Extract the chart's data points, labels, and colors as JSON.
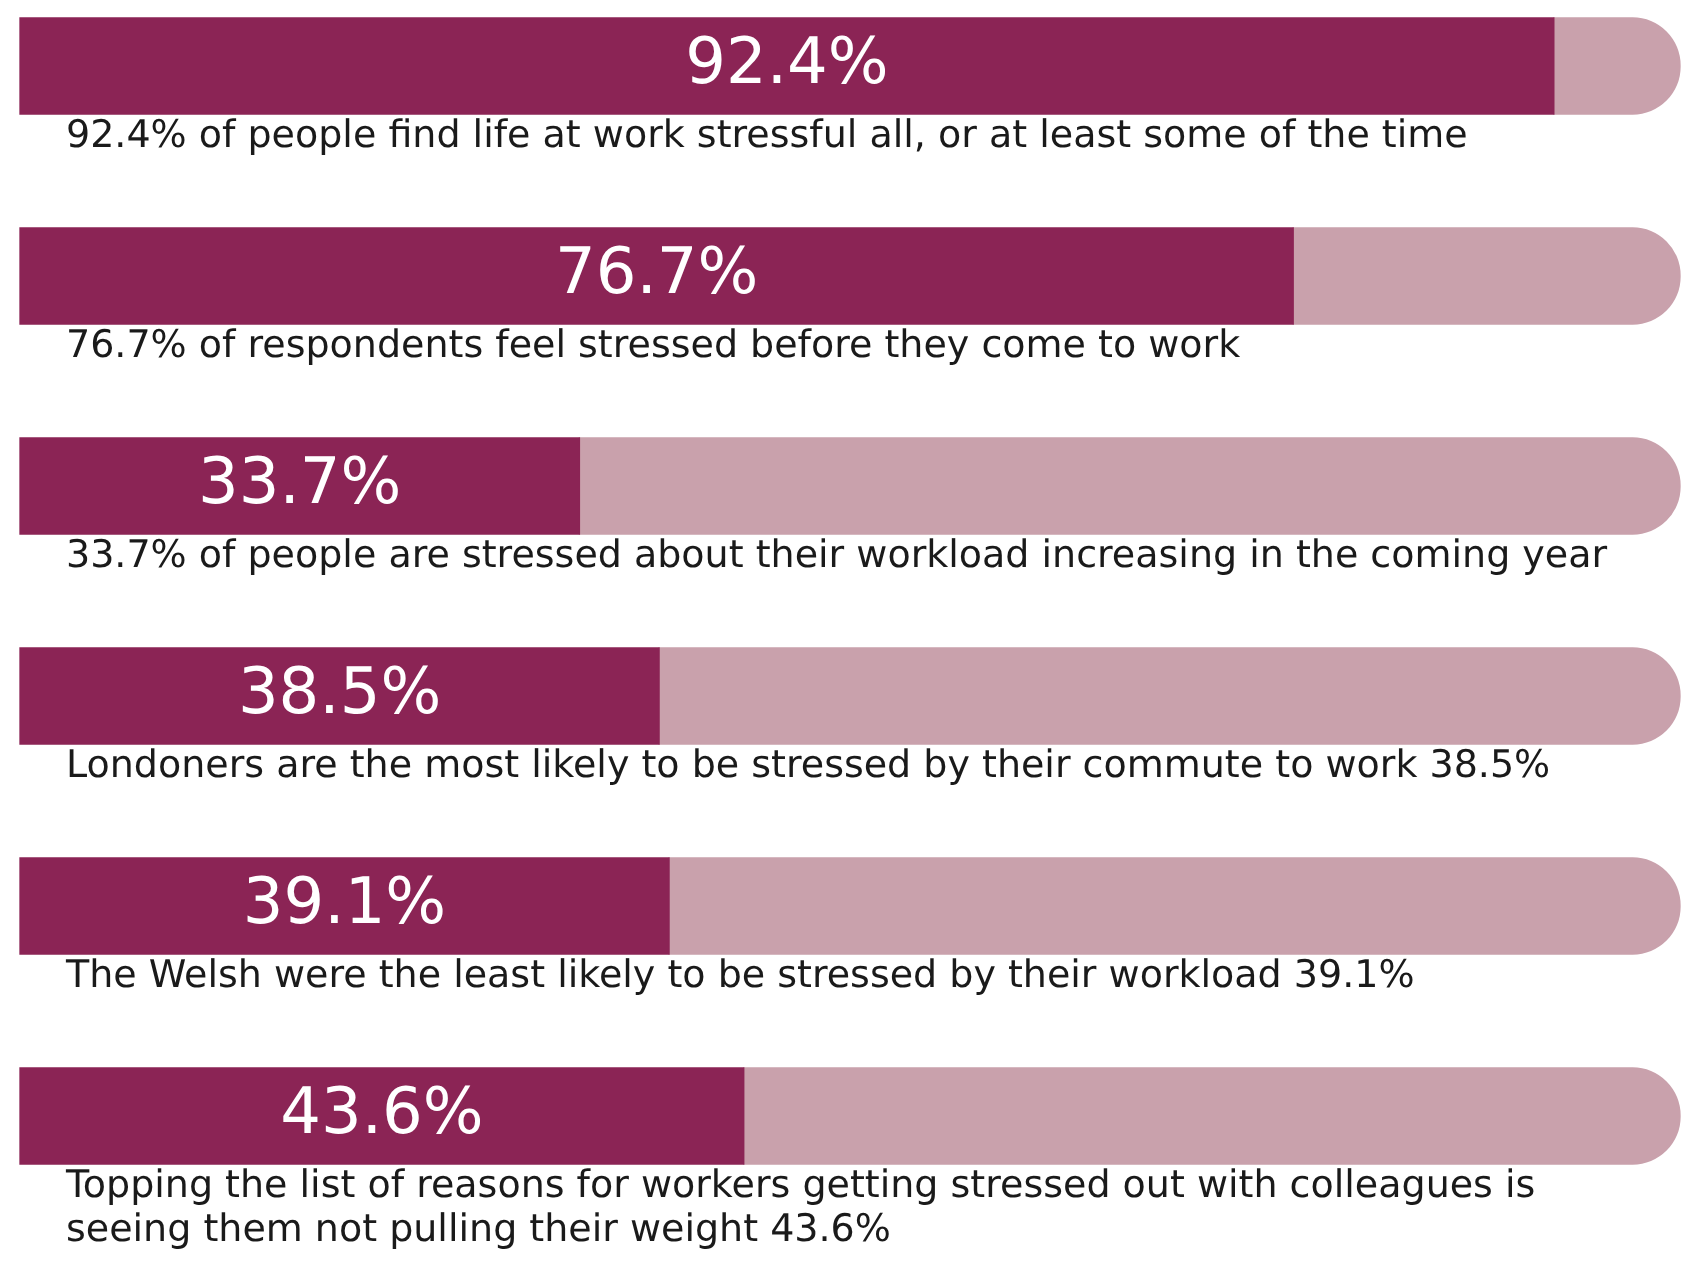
{
  "chart_data": {
    "type": "bar",
    "orientation": "horizontal",
    "stacked": true,
    "xlim": [
      0,
      100
    ],
    "tick_labels": false,
    "legend": false,
    "categories": [
      "92.4% of people find life at work stressful all, or at least some of the time",
      "76.7% of respondents feel stressed before they come to work",
      "33.7% of people are stressed about their workload increasing in the coming year",
      "Londoners are the most likely to be stressed by their commute to work 38.5%",
      "The Welsh were the least likely to be stressed by their workload 39.1%",
      "Topping the list of reasons for workers getting stressed out with colleagues is seeing them not pulling their weight 43.6%"
    ],
    "series": [
      {
        "color": "#8b2455",
        "values": [
          92.4,
          76.7,
          33.7,
          38.5,
          39.1,
          43.6
        ],
        "value_labels": [
          "92.4%",
          "76.7%",
          "33.7%",
          "38.5%",
          "39.1%",
          "43.6%"
        ]
      },
      {
        "color": "#c9a1ac",
        "values": [
          7.6,
          23.3,
          66.3,
          61.5,
          60.9,
          56.4
        ]
      }
    ]
  }
}
